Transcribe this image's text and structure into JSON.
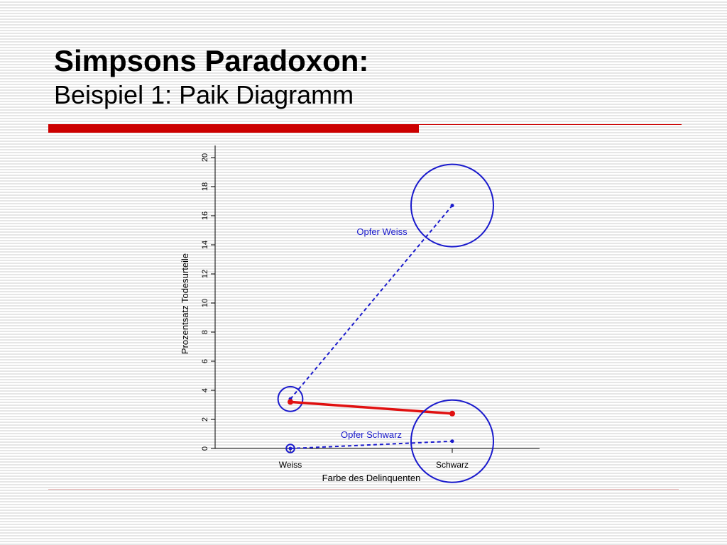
{
  "slide": {
    "title": "Simpsons Paradoxon:",
    "subtitle": "Beispiel 1: Paik Diagramm",
    "colors": {
      "accent_bar": "#cc0000",
      "series_blue": "#1a1acc",
      "series_red": "#e01010"
    }
  },
  "chart_data": {
    "type": "line",
    "xlabel": "Farbe des Delinquenten",
    "ylabel": "Prozentsatz Todesurteile",
    "categories": [
      "Weiss",
      "Schwarz"
    ],
    "ylim": [
      0,
      20
    ],
    "yticks": [
      0,
      2,
      4,
      6,
      8,
      10,
      12,
      14,
      16,
      18,
      20
    ],
    "grid": false,
    "series": [
      {
        "name": "Opfer Weiss",
        "values": [
          3.4,
          16.7
        ],
        "bubble_size": [
          0.3,
          1.0
        ],
        "color": "#1a1acc",
        "style": "dashed"
      },
      {
        "name": "",
        "values": [
          3.2,
          2.4
        ],
        "bubble_size": null,
        "color": "#e01010",
        "style": "solid"
      },
      {
        "name": "Opfer Schwarz",
        "values": [
          0.0,
          0.5
        ],
        "bubble_size": [
          0.1,
          1.0
        ],
        "color": "#1a1acc",
        "style": "dashed"
      }
    ]
  }
}
